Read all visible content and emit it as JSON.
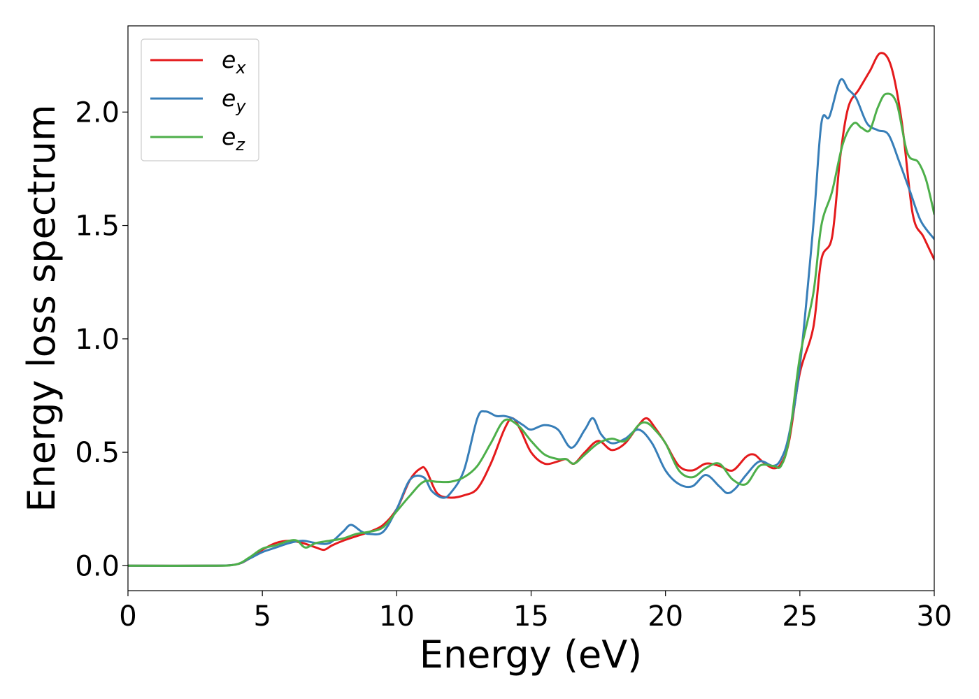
{
  "chart_data": {
    "type": "line",
    "title": "",
    "xlabel": "Energy (eV)",
    "ylabel": "Energy loss spectrum",
    "xlim": [
      0,
      30
    ],
    "ylim": [
      -0.11,
      2.38
    ],
    "xticks": [
      0,
      5,
      10,
      15,
      20,
      25,
      30
    ],
    "yticks": [
      0.0,
      0.5,
      1.0,
      1.5,
      2.0
    ],
    "xtick_labels": [
      "0",
      "5",
      "10",
      "15",
      "20",
      "25",
      "30"
    ],
    "ytick_labels": [
      "0.0",
      "0.5",
      "1.0",
      "1.5",
      "2.0"
    ],
    "grid": false,
    "legend_position": "top-left",
    "series": [
      {
        "name": "e",
        "subscript": "x",
        "color": "#e41a1c",
        "x": [
          0,
          3,
          4,
          4.5,
          5,
          5.5,
          6,
          6.5,
          7,
          7.3,
          7.6,
          8,
          8.5,
          9,
          9.5,
          10,
          10.5,
          10.9,
          11.1,
          11.5,
          12,
          12.5,
          13,
          13.5,
          14,
          14.3,
          14.6,
          15,
          15.5,
          16,
          16.3,
          16.6,
          17,
          17.5,
          18,
          18.5,
          19,
          19.3,
          19.6,
          20,
          20.5,
          21,
          21.5,
          22,
          22.5,
          23,
          23.3,
          23.6,
          24,
          24.3,
          24.6,
          25,
          25.5,
          25.8,
          26.2,
          26.5,
          26.8,
          27.2,
          27.6,
          28,
          28.4,
          28.8,
          29.2,
          29.6,
          30
        ],
        "y": [
          0.0,
          0.0,
          0.005,
          0.03,
          0.07,
          0.1,
          0.11,
          0.1,
          0.08,
          0.07,
          0.09,
          0.11,
          0.13,
          0.15,
          0.18,
          0.25,
          0.38,
          0.43,
          0.42,
          0.32,
          0.3,
          0.31,
          0.34,
          0.45,
          0.6,
          0.65,
          0.6,
          0.5,
          0.45,
          0.46,
          0.47,
          0.45,
          0.5,
          0.55,
          0.51,
          0.54,
          0.62,
          0.65,
          0.61,
          0.54,
          0.44,
          0.42,
          0.45,
          0.44,
          0.42,
          0.48,
          0.49,
          0.46,
          0.43,
          0.45,
          0.55,
          0.85,
          1.05,
          1.35,
          1.45,
          1.8,
          2.02,
          2.1,
          2.18,
          2.26,
          2.2,
          1.95,
          1.55,
          1.45,
          1.35
        ]
      },
      {
        "name": "e",
        "subscript": "y",
        "color": "#377eb8",
        "x": [
          0,
          3,
          4,
          4.5,
          5,
          5.5,
          6,
          6.5,
          7,
          7.5,
          8,
          8.3,
          8.7,
          9,
          9.5,
          10,
          10.5,
          11,
          11.3,
          11.7,
          12,
          12.5,
          13,
          13.3,
          13.7,
          14,
          14.3,
          14.7,
          15,
          15.5,
          16,
          16.5,
          17,
          17.3,
          17.6,
          18,
          18.5,
          19,
          19.5,
          20,
          20.5,
          21,
          21.5,
          22,
          22.3,
          22.6,
          23,
          23.5,
          24,
          24.3,
          24.6,
          25,
          25.5,
          25.8,
          26.1,
          26.5,
          26.8,
          27.1,
          27.5,
          27.9,
          28.3,
          28.7,
          29.1,
          29.5,
          30
        ],
        "y": [
          0.0,
          0.0,
          0.005,
          0.03,
          0.06,
          0.08,
          0.1,
          0.11,
          0.1,
          0.1,
          0.15,
          0.18,
          0.15,
          0.14,
          0.15,
          0.25,
          0.38,
          0.39,
          0.33,
          0.3,
          0.32,
          0.42,
          0.65,
          0.68,
          0.66,
          0.66,
          0.65,
          0.62,
          0.6,
          0.62,
          0.6,
          0.52,
          0.6,
          0.65,
          0.58,
          0.54,
          0.56,
          0.6,
          0.54,
          0.42,
          0.36,
          0.35,
          0.4,
          0.35,
          0.32,
          0.34,
          0.4,
          0.46,
          0.44,
          0.47,
          0.58,
          0.88,
          1.5,
          1.95,
          1.98,
          2.14,
          2.1,
          2.06,
          1.95,
          1.92,
          1.9,
          1.78,
          1.65,
          1.52,
          1.44
        ]
      },
      {
        "name": "e",
        "subscript": "z",
        "color": "#4daf4a",
        "x": [
          0,
          3,
          4,
          4.5,
          5,
          5.5,
          6,
          6.3,
          6.6,
          7,
          7.5,
          8,
          8.5,
          9,
          9.5,
          10,
          10.5,
          11,
          11.5,
          12,
          12.5,
          13,
          13.5,
          14,
          14.5,
          15,
          15.5,
          16,
          16.3,
          16.6,
          17,
          17.5,
          18,
          18.5,
          19,
          19.3,
          19.6,
          20,
          20.5,
          21,
          21.5,
          22,
          22.5,
          23,
          23.5,
          24,
          24.3,
          24.6,
          25,
          25.5,
          25.8,
          26.2,
          26.6,
          27,
          27.3,
          27.6,
          27.9,
          28.2,
          28.6,
          29,
          29.4,
          29.7,
          30
        ],
        "y": [
          0.0,
          0.0,
          0.005,
          0.035,
          0.075,
          0.09,
          0.11,
          0.11,
          0.08,
          0.1,
          0.11,
          0.12,
          0.14,
          0.15,
          0.17,
          0.24,
          0.31,
          0.37,
          0.37,
          0.37,
          0.39,
          0.44,
          0.54,
          0.64,
          0.62,
          0.55,
          0.49,
          0.47,
          0.47,
          0.45,
          0.49,
          0.54,
          0.56,
          0.55,
          0.62,
          0.63,
          0.6,
          0.54,
          0.42,
          0.39,
          0.43,
          0.45,
          0.38,
          0.36,
          0.44,
          0.44,
          0.44,
          0.56,
          0.92,
          1.2,
          1.5,
          1.65,
          1.86,
          1.95,
          1.93,
          1.92,
          2.02,
          2.08,
          2.04,
          1.82,
          1.78,
          1.7,
          1.55
        ]
      }
    ]
  }
}
